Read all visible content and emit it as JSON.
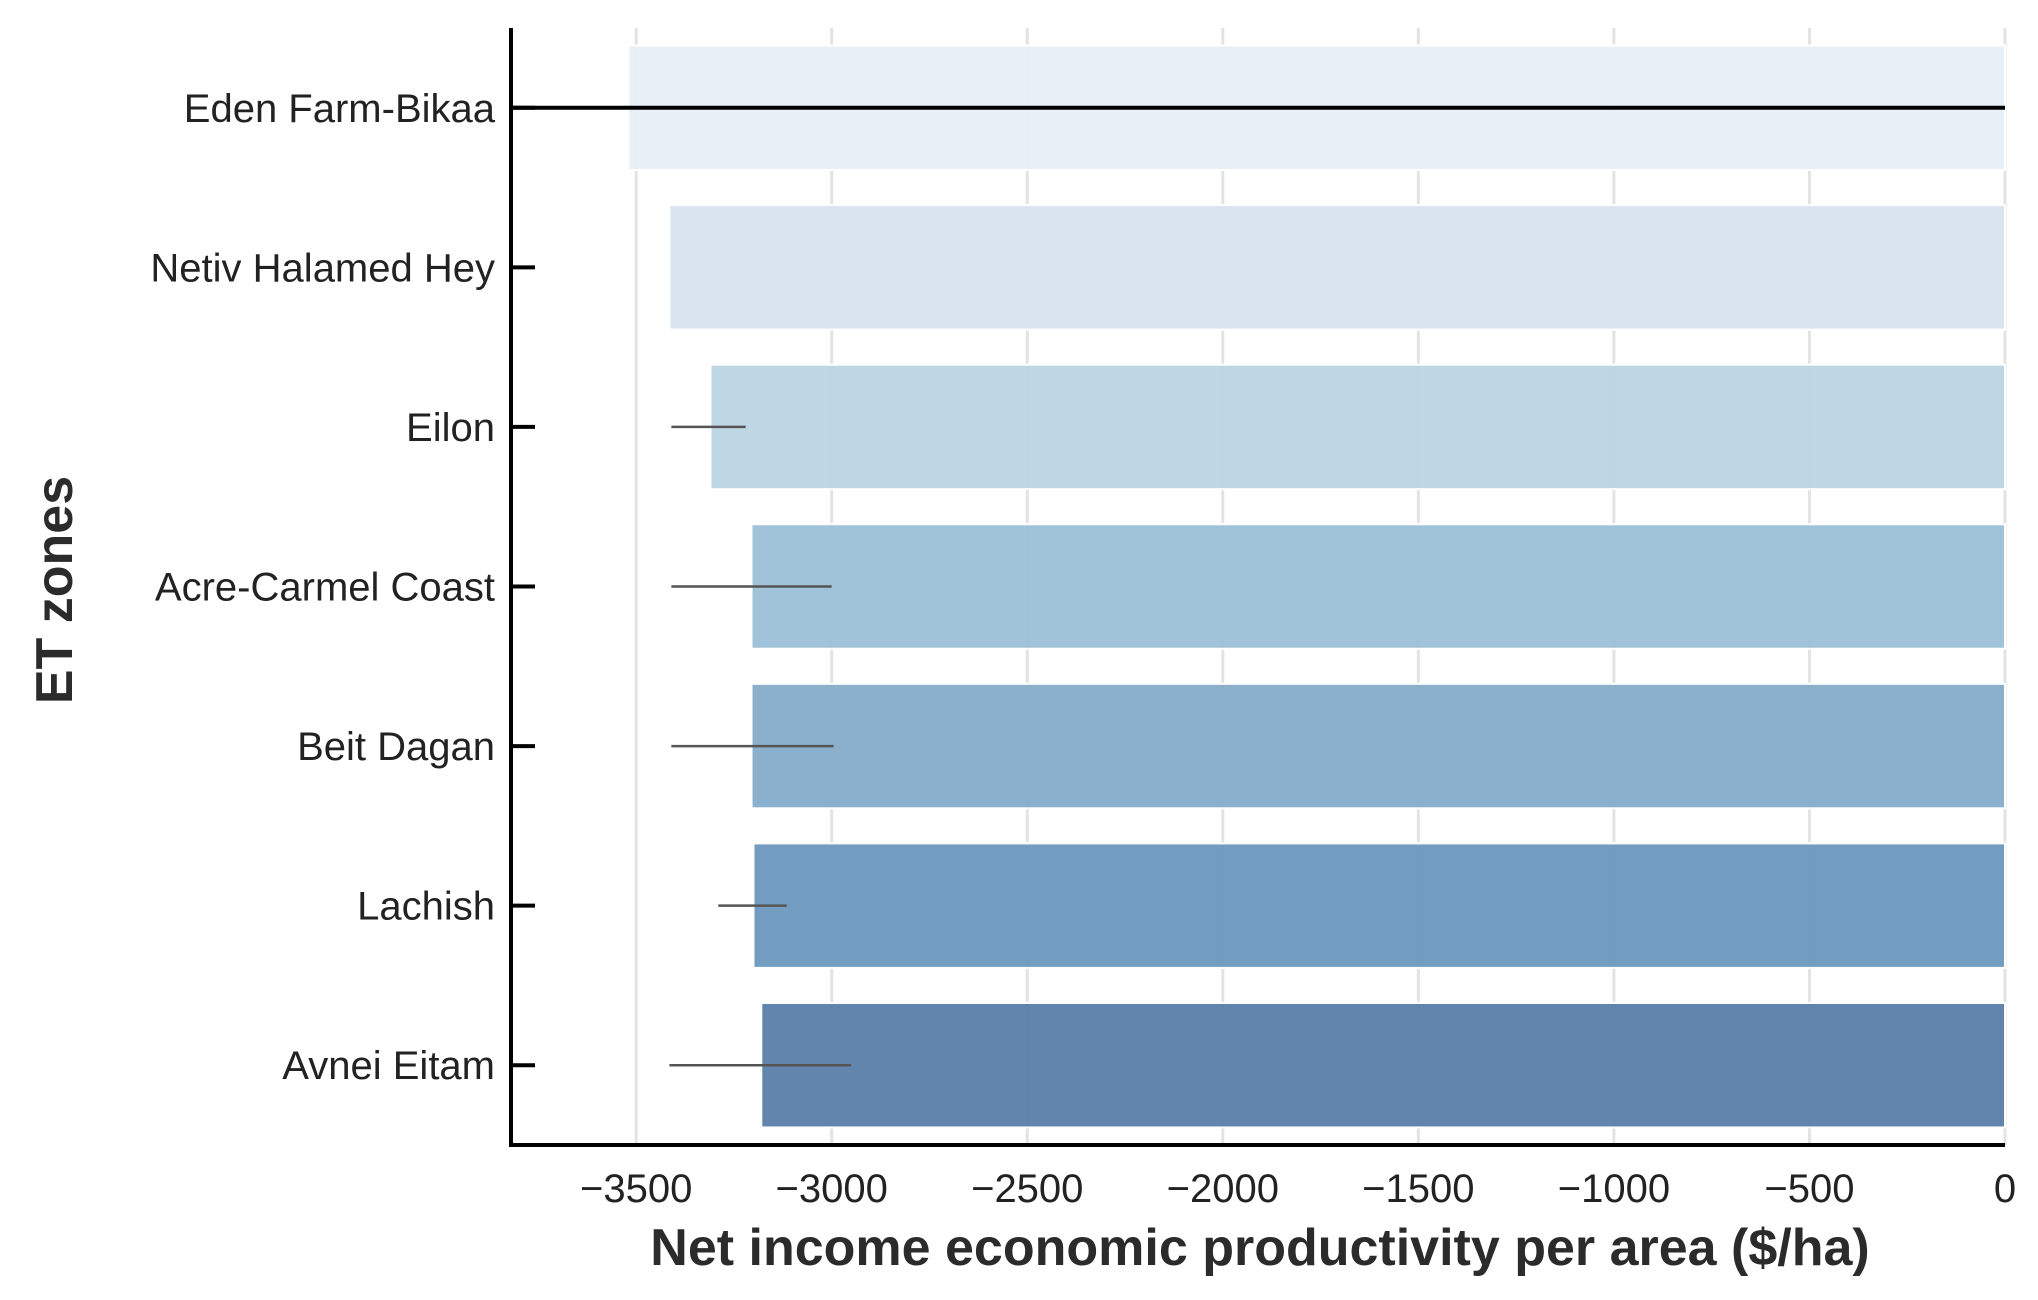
{
  "chart_data": {
    "type": "bar",
    "orientation": "horizontal",
    "xlabel": "Net income economic productivity per area ($/ha)",
    "ylabel": "ET zones",
    "xlim": [
      -3820,
      0
    ],
    "xticks": [
      -3500,
      -3000,
      -2500,
      -2000,
      -1500,
      -1000,
      -500,
      0
    ],
    "xtick_labels": [
      "−3500",
      "−3000",
      "−2500",
      "−2000",
      "−1500",
      "−1000",
      "−500",
      "0"
    ],
    "grid": "vertical",
    "categories": [
      "Eden Farm-Bikaa",
      "Netiv Halamed Hey",
      "Eilon",
      "Acre-Carmel Coast",
      "Beit Dagan",
      "Lachish",
      "Avnei Eitam"
    ],
    "values": [
      -3520,
      -3415,
      -3310,
      -3205,
      -3205,
      -3200,
      -3180
    ],
    "error_bars": [
      null,
      null,
      [
        -3410,
        -3220
      ],
      [
        -3410,
        -3000
      ],
      [
        -3410,
        -2995
      ],
      [
        -3290,
        -3115
      ],
      [
        -3415,
        -2950
      ]
    ],
    "colors": [
      "#e6eef7",
      "#d8e3ee",
      "#bcd4e4",
      "#9cc0d7",
      "#84acca",
      "#6a97bd",
      "#587ea8"
    ],
    "reference_line": {
      "category": "Eden Farm-Bikaa",
      "from": -3820,
      "to": 0,
      "color": "#000000"
    }
  }
}
